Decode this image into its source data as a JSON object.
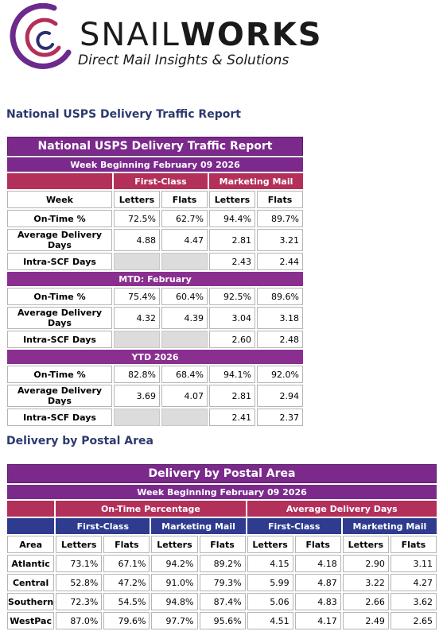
{
  "brand": {
    "name_light": "SNAIL",
    "name_bold": "WORKS",
    "tagline": "Direct Mail Insights & Solutions",
    "colors": {
      "arc_purple": "#6b2a8c",
      "arc_magenta": "#b3305a",
      "arc_navy": "#2b2f6e"
    }
  },
  "national": {
    "heading": "National USPS Delivery Traffic Report",
    "title": "National USPS Delivery Traffic Report",
    "week_label": "Week Beginning February 09 2026",
    "categories": [
      "First-Class",
      "Marketing Mail"
    ],
    "columns": [
      "Week",
      "Letters",
      "Flats",
      "Letters",
      "Flats"
    ],
    "weekly": {
      "on_time": {
        "label": "On-Time %",
        "values": [
          "72.5%",
          "62.7%",
          "94.4%",
          "89.7%"
        ]
      },
      "avg_days": {
        "label": "Average Delivery Days",
        "values": [
          "4.88",
          "4.47",
          "2.81",
          "3.21"
        ]
      },
      "intra_scf": {
        "label": "Intra-SCF Days",
        "values": [
          "",
          "",
          "2.43",
          "2.44"
        ]
      }
    },
    "mtd": {
      "label": "MTD: February",
      "on_time": {
        "label": "On-Time %",
        "values": [
          "75.4%",
          "60.4%",
          "92.5%",
          "89.6%"
        ]
      },
      "avg_days": {
        "label": "Average Delivery Days",
        "values": [
          "4.32",
          "4.39",
          "3.04",
          "3.18"
        ]
      },
      "intra_scf": {
        "label": "Intra-SCF Days",
        "values": [
          "",
          "",
          "2.60",
          "2.48"
        ]
      }
    },
    "ytd": {
      "label": "YTD 2026",
      "on_time": {
        "label": "On-Time %",
        "values": [
          "82.8%",
          "68.4%",
          "94.1%",
          "92.0%"
        ]
      },
      "avg_days": {
        "label": "Average Delivery Days",
        "values": [
          "3.69",
          "4.07",
          "2.81",
          "2.94"
        ]
      },
      "intra_scf": {
        "label": "Intra-SCF Days",
        "values": [
          "",
          "",
          "2.41",
          "2.37"
        ]
      }
    }
  },
  "postal": {
    "heading": "Delivery by Postal Area",
    "title": "Delivery by Postal Area",
    "week_label": "Week Beginning February 09 2026",
    "groups": [
      "On-Time Percentage",
      "Average Delivery Days"
    ],
    "subgroups": [
      "First-Class",
      "Marketing Mail",
      "First-Class",
      "Marketing Mail"
    ],
    "columns": [
      "Area",
      "Letters",
      "Flats",
      "Letters",
      "Flats",
      "Letters",
      "Flats",
      "Letters",
      "Flats"
    ],
    "rows": [
      {
        "area": "Atlantic",
        "values": [
          "73.1%",
          "67.1%",
          "94.2%",
          "89.2%",
          "4.15",
          "4.18",
          "2.90",
          "3.11"
        ]
      },
      {
        "area": "Central",
        "values": [
          "52.8%",
          "47.2%",
          "91.0%",
          "79.3%",
          "5.99",
          "4.87",
          "3.22",
          "4.27"
        ]
      },
      {
        "area": "Southern",
        "values": [
          "72.3%",
          "54.5%",
          "94.8%",
          "87.4%",
          "5.06",
          "4.83",
          "2.66",
          "3.62"
        ]
      },
      {
        "area": "WestPac",
        "values": [
          "87.0%",
          "79.6%",
          "97.7%",
          "95.6%",
          "4.51",
          "4.17",
          "2.49",
          "2.65"
        ]
      }
    ]
  }
}
